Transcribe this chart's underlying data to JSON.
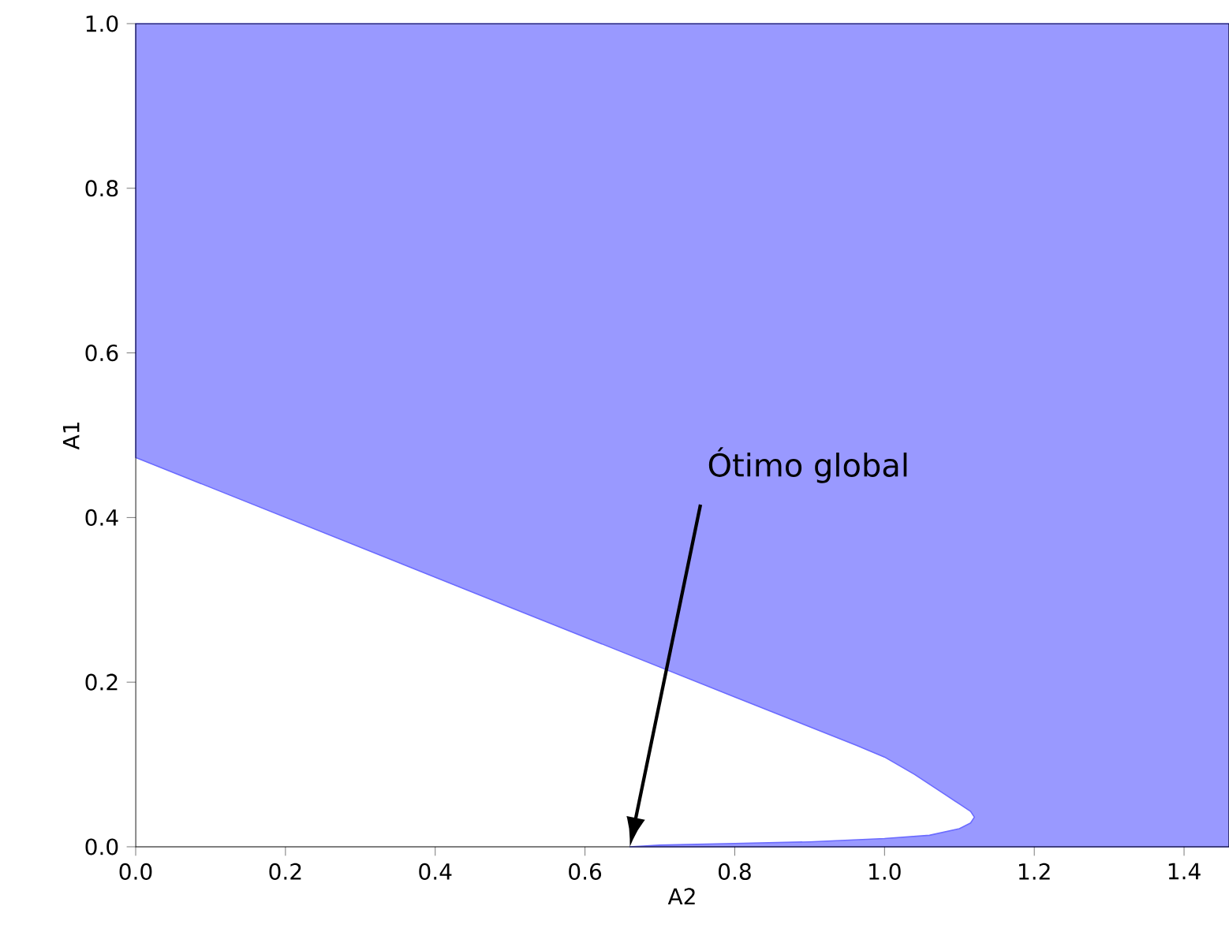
{
  "chart_data": {
    "type": "area",
    "xlabel": "A2",
    "ylabel": "A1",
    "series": [
      {
        "color": "#9999ff",
        "x": [
          0,
          0,
          0.5,
          0.8,
          0.963,
          1.0,
          1.04,
          1.08,
          1.1,
          1.115,
          1.12,
          1.115,
          1.1,
          1.06,
          1.0,
          0.9,
          0.8,
          0.7,
          0.66,
          1.46,
          1.46
        ],
        "values": [
          1.0,
          0.473,
          0.291,
          0.182,
          0.123,
          0.109,
          0.088,
          0.064,
          0.052,
          0.043,
          0.036,
          0.029,
          0.022,
          0.014,
          0.01,
          0.006,
          0.004,
          0.002,
          0,
          0,
          1.0
        ]
      }
    ],
    "xlim": [
      0,
      1.46
    ],
    "ylim": [
      0,
      1.0
    ],
    "xticks": [
      {
        "value": 0,
        "label": "0.0"
      },
      0.2,
      0.4,
      0.6,
      0.8,
      {
        "value": 1.0,
        "label": "1.0"
      },
      1.2,
      1.4
    ],
    "yticks": [
      {
        "value": 0,
        "label": "0.0"
      },
      0.2,
      0.4,
      0.6,
      0.8,
      {
        "value": 1.0,
        "label": "1.0"
      }
    ],
    "annotations": [
      "Ótimo global"
    ],
    "grid": false
  }
}
